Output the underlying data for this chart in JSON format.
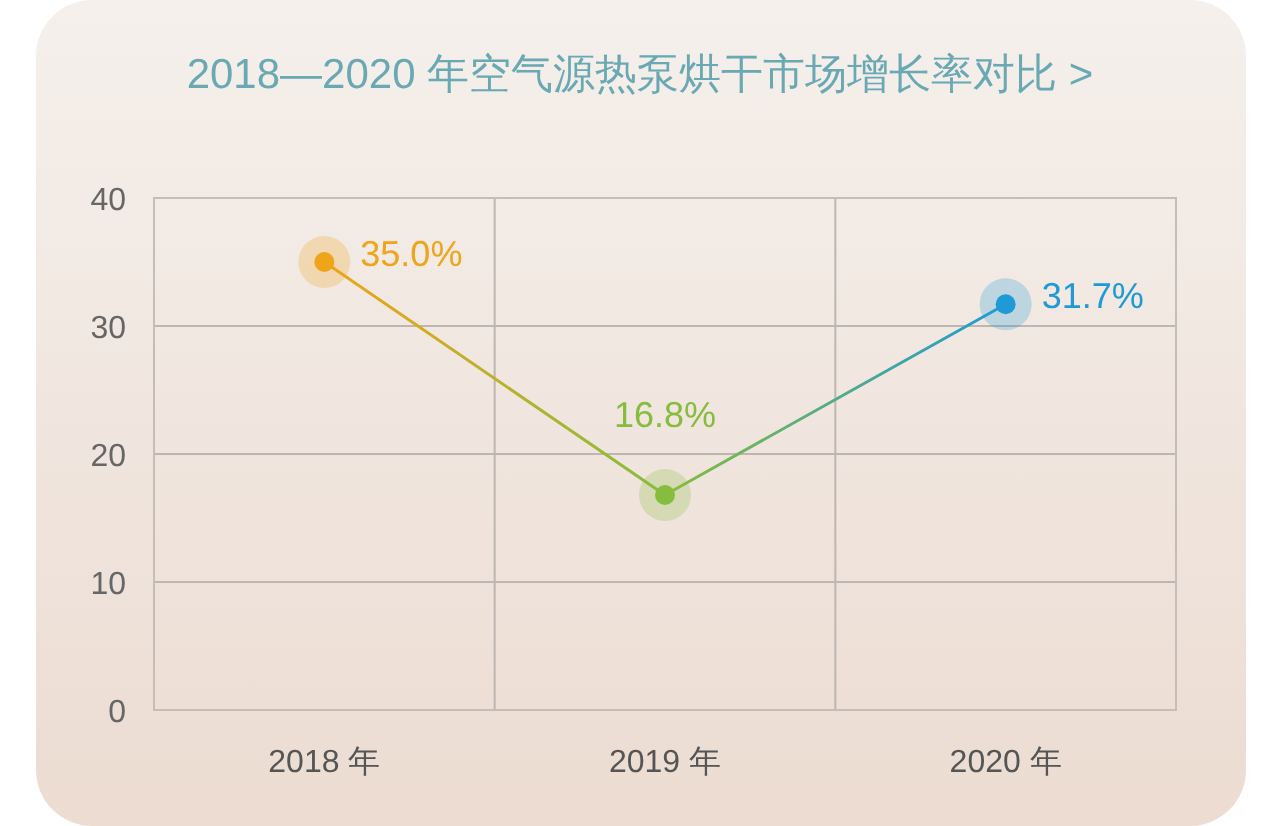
{
  "chart_data": {
    "type": "line",
    "title": "2018—2020 年空气源热泵烘干市场增长率对比 >",
    "categories": [
      "2018 年",
      "2019 年",
      "2020 年"
    ],
    "series": [
      {
        "values": [
          35.0,
          16.8,
          31.7
        ],
        "colors": [
          "#f0a419",
          "#86bd3c",
          "#1f9ad6"
        ],
        "value_labels": [
          "35.0%",
          "16.8%",
          "31.7%"
        ]
      }
    ],
    "ylim": [
      0,
      40
    ],
    "yticks": [
      0,
      10,
      20,
      30,
      40
    ],
    "grid": true,
    "marker": "circle",
    "line_style": "solid"
  }
}
